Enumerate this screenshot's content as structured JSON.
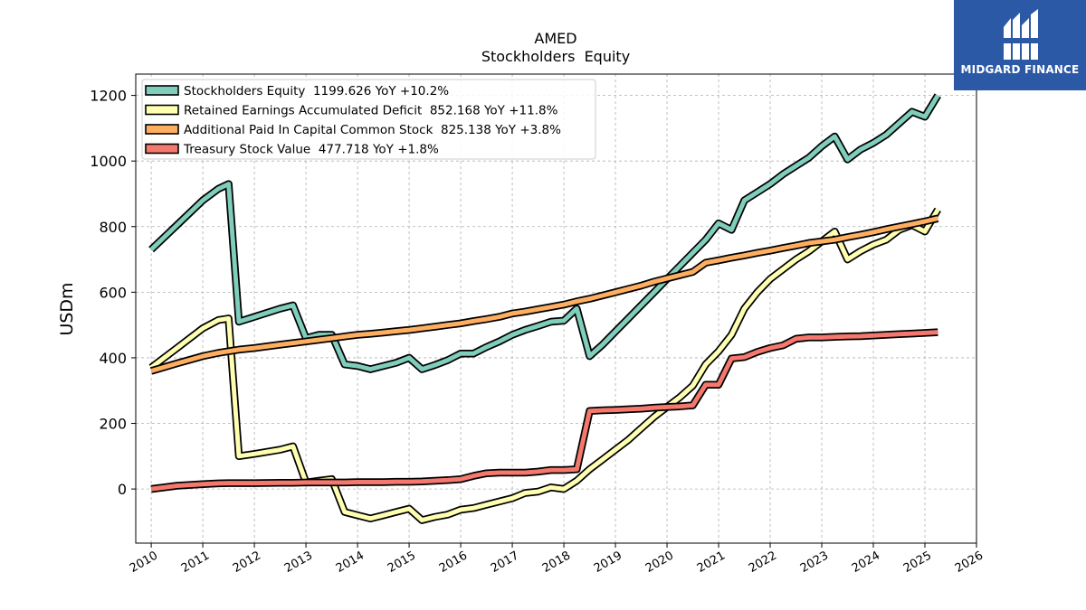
{
  "header": {
    "ticker": "AMED",
    "subtitle": "Stockholders  Equity"
  },
  "brand": {
    "name": "MIDGARD FINANCE",
    "logo_icon": "midgard-logo-icon",
    "background": "#2b59a6"
  },
  "chart_data": {
    "type": "line",
    "title": "AMED",
    "subtitle": "Stockholders  Equity",
    "ylabel": "USDm",
    "xlabel": "",
    "xlim": [
      2009.7,
      2026.0
    ],
    "ylim": [
      -165,
      1265
    ],
    "grid": true,
    "legend_position": "top-left",
    "yticks": [
      0,
      200,
      400,
      600,
      800,
      1000,
      1200
    ],
    "xticks": [
      2010,
      2011,
      2012,
      2013,
      2014,
      2015,
      2016,
      2017,
      2018,
      2019,
      2020,
      2021,
      2022,
      2023,
      2024,
      2025,
      2026
    ],
    "xtick_labels": [
      "2010",
      "2011",
      "2012",
      "2013",
      "2014",
      "2015",
      "2016",
      "2017",
      "2018",
      "2019",
      "2020",
      "2021",
      "2022",
      "2023",
      "2024",
      "2025",
      "2026"
    ],
    "series": [
      {
        "name": "Stockholders Equity",
        "legend": "Stockholders Equity  1199.626 YoY +10.2%",
        "color": "#7fcdbb",
        "x": [
          2010.0,
          2010.5,
          2011.0,
          2011.3,
          2011.5,
          2011.7,
          2012.0,
          2012.5,
          2012.75,
          2013.0,
          2013.25,
          2013.5,
          2013.75,
          2014.0,
          2014.25,
          2014.5,
          2014.75,
          2015.0,
          2015.25,
          2015.5,
          2015.75,
          2016.0,
          2016.25,
          2016.5,
          2016.75,
          2017.0,
          2017.25,
          2017.5,
          2017.75,
          2018.0,
          2018.25,
          2018.5,
          2018.75,
          2019.0,
          2019.25,
          2019.5,
          2019.75,
          2020.0,
          2020.25,
          2020.5,
          2020.75,
          2021.0,
          2021.25,
          2021.5,
          2021.75,
          2022.0,
          2022.25,
          2022.5,
          2022.75,
          2023.0,
          2023.25,
          2023.5,
          2023.75,
          2024.0,
          2024.25,
          2024.5,
          2024.75,
          2025.0,
          2025.25
        ],
        "y": [
          730,
          805,
          880,
          915,
          930,
          510,
          525,
          550,
          560,
          460,
          470,
          470,
          380,
          375,
          365,
          375,
          385,
          400,
          365,
          378,
          393,
          413,
          413,
          433,
          450,
          470,
          485,
          497,
          510,
          513,
          550,
          405,
          440,
          480,
          520,
          560,
          600,
          640,
          680,
          720,
          760,
          810,
          790,
          880,
          905,
          930,
          960,
          985,
          1010,
          1045,
          1075,
          1005,
          1035,
          1055,
          1080,
          1115,
          1150,
          1135,
          1200
        ]
      },
      {
        "name": "Retained Earnings Accumulated Deficit",
        "legend": "Retained Earnings Accumulated Deficit  852.168 YoY +11.8%",
        "color": "#ffffb2",
        "x": [
          2010.0,
          2010.5,
          2011.0,
          2011.3,
          2011.5,
          2011.7,
          2012.0,
          2012.5,
          2012.75,
          2013.0,
          2013.25,
          2013.5,
          2013.75,
          2014.0,
          2014.25,
          2014.5,
          2014.75,
          2015.0,
          2015.25,
          2015.5,
          2015.75,
          2016.0,
          2016.25,
          2016.5,
          2016.75,
          2017.0,
          2017.25,
          2017.5,
          2017.75,
          2018.0,
          2018.25,
          2018.5,
          2018.75,
          2019.0,
          2019.25,
          2019.5,
          2019.75,
          2020.0,
          2020.25,
          2020.5,
          2020.75,
          2021.0,
          2021.25,
          2021.5,
          2021.75,
          2022.0,
          2022.25,
          2022.5,
          2022.75,
          2023.0,
          2023.25,
          2023.5,
          2023.75,
          2024.0,
          2024.25,
          2024.5,
          2024.75,
          2025.0,
          2025.25
        ],
        "y": [
          370,
          430,
          490,
          515,
          520,
          100,
          107,
          120,
          130,
          20,
          25,
          30,
          -70,
          -80,
          -90,
          -80,
          -70,
          -60,
          -95,
          -85,
          -78,
          -63,
          -58,
          -48,
          -38,
          -28,
          -12,
          -8,
          5,
          0,
          25,
          60,
          90,
          120,
          150,
          185,
          220,
          250,
          280,
          315,
          380,
          420,
          470,
          550,
          600,
          640,
          670,
          700,
          725,
          755,
          785,
          700,
          725,
          745,
          760,
          790,
          805,
          785,
          852
        ]
      },
      {
        "name": "Additional Paid In Capital Common Stock",
        "legend": "Additional Paid In Capital Common Stock  825.138 YoY +3.8%",
        "color": "#fdae61",
        "x": [
          2010.0,
          2010.5,
          2011.0,
          2011.3,
          2011.5,
          2011.7,
          2012.0,
          2012.5,
          2012.75,
          2013.0,
          2013.25,
          2013.5,
          2013.75,
          2014.0,
          2014.25,
          2014.5,
          2014.75,
          2015.0,
          2015.25,
          2015.5,
          2015.75,
          2016.0,
          2016.25,
          2016.5,
          2016.75,
          2017.0,
          2017.25,
          2017.5,
          2017.75,
          2018.0,
          2018.25,
          2018.5,
          2018.75,
          2019.0,
          2019.25,
          2019.5,
          2019.75,
          2020.0,
          2020.25,
          2020.5,
          2020.75,
          2021.0,
          2021.25,
          2021.5,
          2021.75,
          2022.0,
          2022.25,
          2022.5,
          2022.75,
          2023.0,
          2023.25,
          2023.5,
          2023.75,
          2024.0,
          2024.25,
          2024.5,
          2024.75,
          2025.0,
          2025.25
        ],
        "y": [
          360,
          383,
          405,
          415,
          420,
          425,
          430,
          440,
          445,
          450,
          455,
          460,
          465,
          470,
          473,
          477,
          481,
          485,
          490,
          495,
          500,
          505,
          512,
          518,
          525,
          535,
          541,
          548,
          555,
          562,
          572,
          580,
          590,
          600,
          610,
          620,
          632,
          642,
          652,
          662,
          690,
          697,
          705,
          712,
          720,
          727,
          735,
          742,
          750,
          755,
          760,
          768,
          775,
          783,
          792,
          800,
          808,
          816,
          825
        ]
      },
      {
        "name": "Treasury Stock Value",
        "legend": "Treasury Stock Value  477.718 YoY +1.8%",
        "color": "#f4786d",
        "x": [
          2010.0,
          2010.5,
          2011.0,
          2011.3,
          2011.5,
          2011.7,
          2012.0,
          2012.5,
          2012.75,
          2013.0,
          2013.25,
          2013.5,
          2013.75,
          2014.0,
          2014.25,
          2014.5,
          2014.75,
          2015.0,
          2015.25,
          2015.5,
          2015.75,
          2016.0,
          2016.25,
          2016.5,
          2016.75,
          2017.0,
          2017.25,
          2017.5,
          2017.75,
          2018.0,
          2018.25,
          2018.5,
          2018.75,
          2019.0,
          2019.25,
          2019.5,
          2019.75,
          2020.0,
          2020.25,
          2020.5,
          2020.75,
          2021.0,
          2021.25,
          2021.5,
          2021.75,
          2022.0,
          2022.25,
          2022.5,
          2022.75,
          2023.0,
          2023.25,
          2023.5,
          2023.75,
          2024.0,
          2024.25,
          2024.5,
          2024.75,
          2025.0,
          2025.25
        ],
        "y": [
          0,
          10,
          15,
          17,
          18,
          18,
          18,
          19,
          19,
          20,
          20,
          20,
          20,
          21,
          21,
          21,
          22,
          22,
          23,
          25,
          27,
          30,
          40,
          48,
          50,
          50,
          50,
          53,
          58,
          58,
          60,
          238,
          240,
          241,
          243,
          245,
          248,
          250,
          252,
          255,
          318,
          318,
          398,
          402,
          418,
          430,
          438,
          458,
          462,
          462,
          464,
          465,
          466,
          468,
          470,
          472,
          474,
          476,
          478
        ]
      }
    ]
  }
}
